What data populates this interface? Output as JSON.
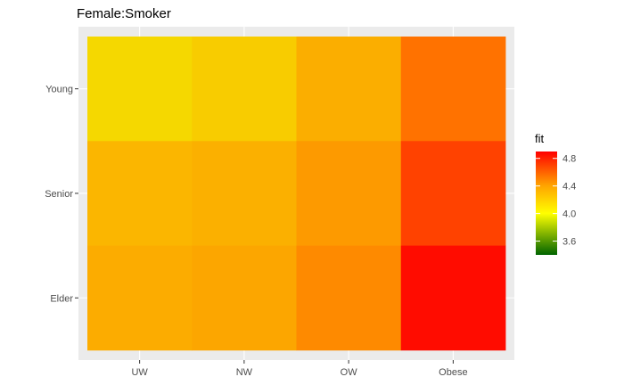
{
  "chart_data": {
    "type": "heatmap",
    "title": "Female:Smoker",
    "xlabel": "",
    "ylabel": "",
    "x_categories": [
      "UW",
      "NW",
      "OW",
      "Obese"
    ],
    "y_categories": [
      "Young",
      "Senior",
      "Elder"
    ],
    "values": [
      [
        4.21,
        4.28,
        4.42,
        4.62
      ],
      [
        4.39,
        4.41,
        4.52,
        4.74
      ],
      [
        4.44,
        4.47,
        4.58,
        4.85
      ]
    ],
    "cell_colors": [
      [
        "#f5d800",
        "#f8cc00",
        "#fbae00",
        "#ff7200"
      ],
      [
        "#fbb600",
        "#fbb000",
        "#fd9a00",
        "#ff4200"
      ],
      [
        "#fcac00",
        "#fca600",
        "#fe8a00",
        "#ff0c00"
      ]
    ],
    "grid": true,
    "legend": {
      "title": "fit",
      "position": "right",
      "range": [
        3.4,
        4.9
      ],
      "ticks": [
        3.6,
        4.0,
        4.4,
        4.8
      ],
      "tick_labels": [
        "3.6",
        "4.0",
        "4.4",
        "4.8"
      ],
      "gradient": [
        {
          "value": 3.4,
          "color": "#006400"
        },
        {
          "value": 4.0,
          "color": "#ffff00"
        },
        {
          "value": 4.4,
          "color": "#ffa500"
        },
        {
          "value": 4.9,
          "color": "#ff0000"
        }
      ]
    }
  }
}
